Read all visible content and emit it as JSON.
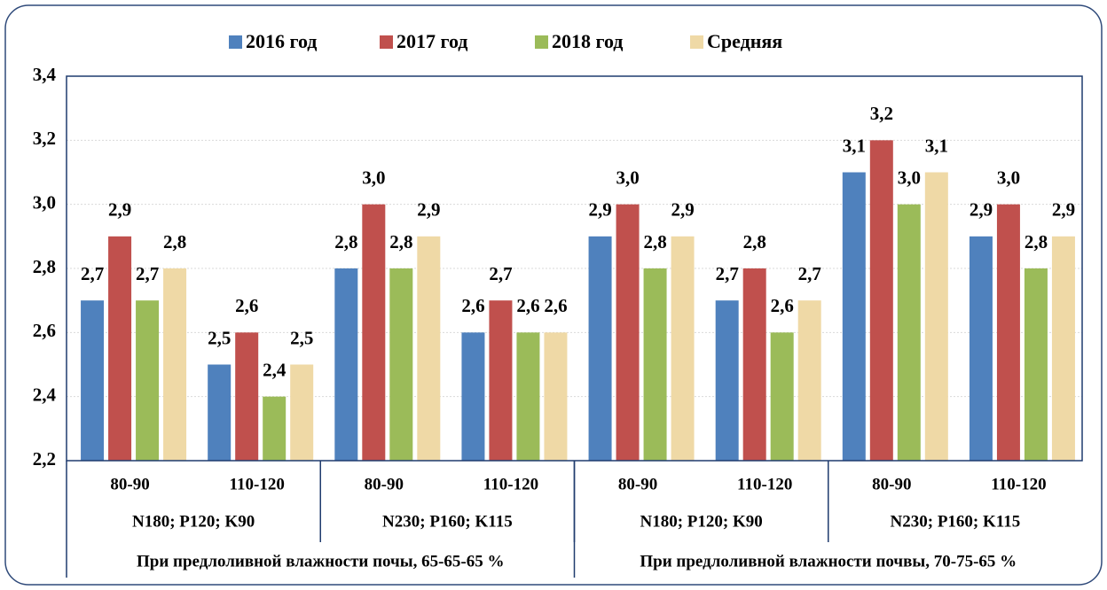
{
  "chart_data": {
    "type": "bar",
    "categories": [
      "80-90",
      "110-120",
      "80-90",
      "110-120",
      "80-90",
      "110-120",
      "80-90",
      "110-120"
    ],
    "category_levels": [
      [
        "N180; P120; K90",
        "N230; P160; K115",
        "N180; P120; K90",
        "N230; P160; K115"
      ],
      [
        "При предлоливной влажности почы, 65-65-65 %",
        "При предлоливной влажности почвы, 70-75-65 %"
      ]
    ],
    "series": [
      {
        "name": "2016 год",
        "color": "#4f81bd",
        "values": [
          2.7,
          2.5,
          2.8,
          2.6,
          2.9,
          2.7,
          3.1,
          2.9
        ],
        "value_labels": [
          "2,7",
          "2,5",
          "2,8",
          "2,6",
          "2,9",
          "2,7",
          "3,1",
          "2,9"
        ]
      },
      {
        "name": "2017 год",
        "color": "#c0504d",
        "values": [
          2.9,
          2.6,
          3.0,
          2.7,
          3.0,
          2.8,
          3.2,
          3.0
        ],
        "value_labels": [
          "2,9",
          "2,6",
          "3,0",
          "2,7",
          "3,0",
          "2,8",
          "3,2",
          "3,0"
        ]
      },
      {
        "name": "2018 год",
        "color": "#9bbb59",
        "values": [
          2.7,
          2.4,
          2.8,
          2.6,
          2.8,
          2.6,
          3.0,
          2.8
        ],
        "value_labels": [
          "2,7",
          "2,4",
          "2,8",
          "2,6",
          "2,8",
          "2,6",
          "3,0",
          "2,8"
        ]
      },
      {
        "name": "Средняя",
        "color": "#efd9a6",
        "values": [
          2.8,
          2.5,
          2.9,
          2.6,
          2.9,
          2.7,
          3.1,
          2.9
        ],
        "value_labels": [
          "2,8",
          "2,5",
          "2,9",
          "2,6",
          "2,9",
          "2,7",
          "3,1",
          "2,9"
        ]
      }
    ],
    "ylim": [
      2.2,
      3.4
    ],
    "yticks": [
      {
        "value": 2.2,
        "label": "2,2"
      },
      {
        "value": 2.4,
        "label": "2,4"
      },
      {
        "value": 2.6,
        "label": "2,6"
      },
      {
        "value": 2.8,
        "label": "2,8"
      },
      {
        "value": 3.0,
        "label": "3,0"
      },
      {
        "value": 3.2,
        "label": "3,2"
      },
      {
        "value": 3.4,
        "label": "3,4"
      }
    ],
    "grid": true,
    "legend": "top"
  }
}
